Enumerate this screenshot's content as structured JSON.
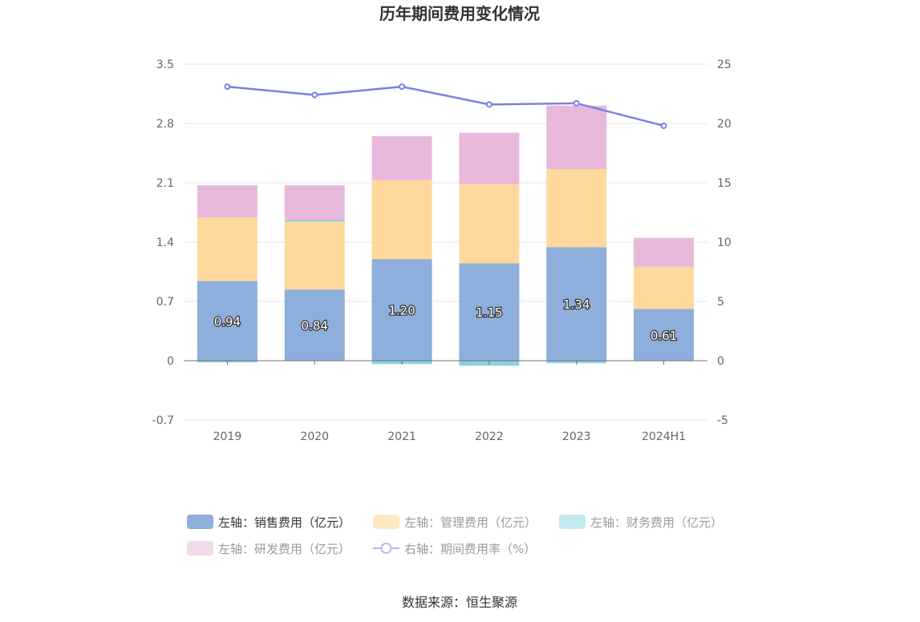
{
  "title": "历年期间费用变化情况",
  "source": "数据来源：恒生聚源",
  "chart_data": {
    "type": "bar",
    "stacked": true,
    "categories": [
      "2019",
      "2020",
      "2021",
      "2022",
      "2023",
      "2024H1"
    ],
    "left_axis": {
      "ylim": [
        -0.7,
        3.5
      ],
      "ticks": [
        "-0.7",
        "0",
        "0.7",
        "1.4",
        "2.1",
        "2.8",
        "3.5"
      ]
    },
    "right_axis": {
      "ylim": [
        -5,
        25
      ],
      "ticks": [
        "-5",
        "0",
        "5",
        "10",
        "15",
        "20",
        "25"
      ]
    },
    "grid": true,
    "legend_position": "bottom",
    "series": [
      {
        "name": "左轴：销售费用（亿元）",
        "axis": "left",
        "type": "bar",
        "color": "#8eaedb",
        "values": [
          0.94,
          0.84,
          1.2,
          1.15,
          1.34,
          0.61
        ],
        "labels": [
          "0.94",
          "0.84",
          "1.20",
          "1.15",
          "1.34",
          "0.61"
        ]
      },
      {
        "name": "左轴：管理费用（亿元）",
        "axis": "left",
        "type": "bar",
        "color": "#ffd99b",
        "values": [
          0.75,
          0.8,
          0.93,
          0.93,
          0.92,
          0.5
        ]
      },
      {
        "name": "左轴：财务费用（亿元）",
        "axis": "left",
        "type": "bar",
        "color": "#8ad3dc",
        "values": [
          -0.02,
          0.02,
          -0.04,
          -0.06,
          -0.03,
          0.0
        ]
      },
      {
        "name": "左轴：研发费用（亿元）",
        "axis": "left",
        "type": "bar",
        "color": "#e8b9da",
        "values": [
          0.38,
          0.41,
          0.52,
          0.61,
          0.75,
          0.34
        ]
      },
      {
        "name": "右轴：期间费用率（%）",
        "axis": "right",
        "type": "line",
        "color": "#7b7fe8",
        "values": [
          23.1,
          22.4,
          23.1,
          21.6,
          21.7,
          19.8
        ]
      }
    ]
  }
}
